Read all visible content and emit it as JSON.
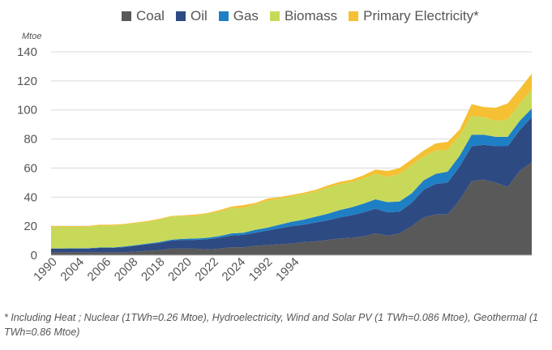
{
  "legend": [
    {
      "name": "Coal",
      "color": "#595959"
    },
    {
      "name": "Oil",
      "color": "#2e4a82"
    },
    {
      "name": "Gas",
      "color": "#1f7fc4"
    },
    {
      "name": "Biomass",
      "color": "#c8d95a"
    },
    {
      "name": "Primary Electricity*",
      "color": "#f5c033"
    }
  ],
  "unit_label": "Mtoe",
  "footnote": "* Including Heat ; Nuclear (1TWh=0.26 Mtoe), Hydroelectricity, Wind and Solar PV (1 TWh=0.086 Mtoe), Geothermal (1 TWh=0.86 Mtoe)",
  "chart_data": {
    "type": "area",
    "stacked": true,
    "ylabel": "Mtoe",
    "ylim": [
      0,
      140
    ],
    "y_ticks": [
      0,
      20,
      40,
      60,
      80,
      100,
      120,
      140
    ],
    "grid": true,
    "legend_position": "top",
    "x_tick_labels": [
      "1990",
      "2004",
      "2006",
      "2008",
      "2018",
      "2020",
      "2022",
      "2024",
      "1992",
      "1994"
    ],
    "series": [
      {
        "name": "Coal",
        "color": "#595959",
        "values": [
          2,
          2,
          2,
          2,
          2,
          2,
          2,
          2.5,
          3,
          3.5,
          4.5,
          4.5,
          4.5,
          4,
          4.5,
          5.5,
          5.5,
          6.5,
          7,
          7.5,
          8,
          9,
          9.5,
          10.5,
          11.5,
          12,
          13,
          15,
          13.5,
          15,
          20,
          26,
          28,
          28,
          38,
          51,
          52,
          50,
          47,
          58,
          64
        ]
      },
      {
        "name": "Oil",
        "color": "#2e4a82",
        "values": [
          2.5,
          2.5,
          2.5,
          2.5,
          3,
          3,
          3.5,
          4,
          4.5,
          5,
          5.5,
          6,
          6,
          7,
          7.5,
          8,
          8.5,
          9,
          10,
          11,
          12,
          12,
          13,
          13.5,
          14.5,
          15.5,
          16.5,
          17,
          16,
          15,
          16,
          19,
          21,
          22,
          23,
          24,
          24,
          25,
          28,
          28,
          31
        ]
      },
      {
        "name": "Gas",
        "color": "#1f7fc4",
        "values": [
          0.2,
          0.2,
          0.3,
          0.3,
          0.3,
          0.3,
          0.4,
          0.4,
          0.5,
          0.6,
          0.7,
          0.8,
          1,
          1,
          1.2,
          1.5,
          1.5,
          2,
          2,
          2.5,
          3,
          3.5,
          4,
          4.5,
          5,
          5.5,
          6,
          6.5,
          7,
          7,
          6.5,
          6.5,
          7,
          7.5,
          7.5,
          8,
          7,
          6.5,
          6.5,
          6.5,
          6
        ]
      },
      {
        "name": "Biomass",
        "color": "#c8d95a",
        "values": [
          14.8,
          14.8,
          14.7,
          14.7,
          15,
          15,
          15.1,
          15.1,
          15,
          15.4,
          15.8,
          15.7,
          15.5,
          16.5,
          16.8,
          17.5,
          17,
          17.5,
          18.5,
          18,
          17.5,
          17.5,
          17.5,
          18,
          18,
          17.5,
          17.5,
          17.5,
          17.5,
          19,
          19.5,
          16.5,
          16,
          15,
          14,
          13,
          12,
          11,
          12,
          12,
          13
        ]
      },
      {
        "name": "Primary Electricity*",
        "color": "#f5c033",
        "values": [
          0.5,
          0.5,
          0.5,
          0.5,
          0.7,
          0.7,
          0.5,
          0.5,
          0.5,
          0.5,
          0.5,
          0.5,
          1,
          0.5,
          1,
          1,
          2,
          1,
          1.5,
          1,
          1,
          1,
          1,
          1.5,
          1.5,
          1.5,
          2,
          3,
          4,
          4,
          4,
          4,
          5,
          5.5,
          4,
          8,
          7,
          9,
          11,
          10,
          11
        ]
      }
    ]
  }
}
